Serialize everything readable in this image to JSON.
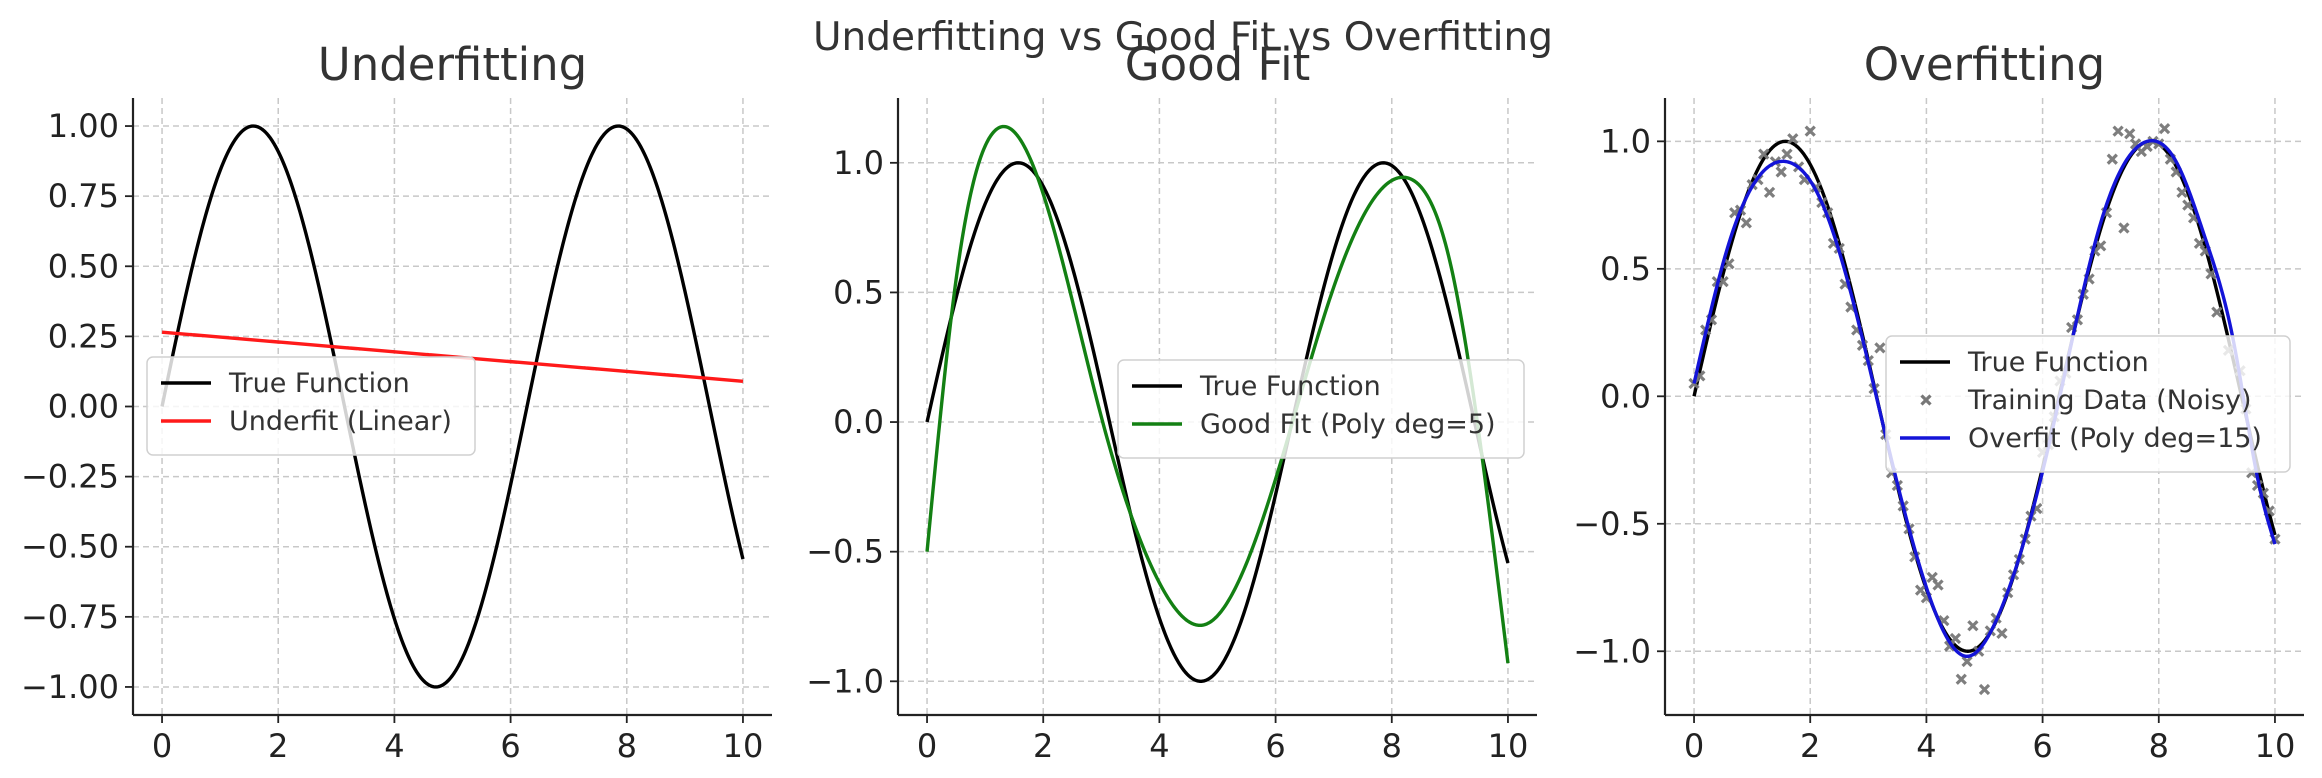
{
  "figure": {
    "suptitle": "Underfitting vs Good Fit vs Overfitting"
  },
  "colors": {
    "true": "#000000",
    "underfit": "#ff1a1a",
    "good": "#138013",
    "overfit": "#1414d8",
    "points": "#777777"
  },
  "chart_data": [
    {
      "type": "line",
      "title": "Underfitting",
      "xlabel": "",
      "ylabel": "",
      "xlim": [
        -0.5,
        10.5
      ],
      "ylim": [
        -1.1,
        1.1
      ],
      "xticks": [
        0,
        2,
        4,
        6,
        8,
        10
      ],
      "yticks": [
        1.0,
        0.75,
        0.5,
        0.25,
        0.0,
        -0.25,
        -0.5,
        -0.75,
        -1.0
      ],
      "ytick_labels": [
        "1.00",
        "0.75",
        "0.50",
        "0.25",
        "0.00",
        "−0.25",
        "−0.50",
        "−0.75",
        "−1.00"
      ],
      "grid": true,
      "legend_position": "center-left",
      "series": [
        {
          "name": "True Function",
          "color": "#000000",
          "function": "sin(x)",
          "x_range": [
            0,
            10
          ]
        },
        {
          "name": "Underfit (Linear)",
          "color": "#ff1a1a",
          "function": "linear",
          "x_range": [
            0,
            10
          ],
          "y_start": 0.265,
          "y_end": 0.09
        }
      ]
    },
    {
      "type": "line",
      "title": "Good Fit",
      "xlabel": "",
      "ylabel": "",
      "xlim": [
        -0.5,
        10.5
      ],
      "ylim": [
        -1.13,
        1.25
      ],
      "xticks": [
        0,
        2,
        4,
        6,
        8,
        10
      ],
      "yticks": [
        1.0,
        0.5,
        0.0,
        -0.5,
        -1.0
      ],
      "ytick_labels": [
        "1.0",
        "0.5",
        "0.0",
        "−0.5",
        "−1.0"
      ],
      "grid": true,
      "legend_position": "center-right",
      "series": [
        {
          "name": "True Function",
          "color": "#000000",
          "function": "sin(x)",
          "x_range": [
            0,
            10
          ]
        },
        {
          "name": "Good Fit (Poly deg=5)",
          "color": "#138013",
          "function": "polynomial",
          "x_range": [
            0,
            10
          ],
          "points": [
            [
              0,
              -0.5
            ],
            [
              0.5,
              0.55
            ],
            [
              1.2,
              1.13
            ],
            [
              2,
              0.88
            ],
            [
              3,
              0.02
            ],
            [
              4,
              -0.62
            ],
            [
              4.8,
              -0.78
            ],
            [
              6,
              -0.22
            ],
            [
              7,
              0.52
            ],
            [
              8.3,
              0.94
            ],
            [
              9,
              0.62
            ],
            [
              10,
              -0.93
            ]
          ]
        }
      ]
    },
    {
      "type": "line",
      "title": "Overfitting",
      "xlabel": "",
      "ylabel": "",
      "xlim": [
        -0.5,
        10.5
      ],
      "ylim": [
        -1.25,
        1.17
      ],
      "xticks": [
        0,
        2,
        4,
        6,
        8,
        10
      ],
      "yticks": [
        1.0,
        0.5,
        0.0,
        -0.5,
        -1.0
      ],
      "ytick_labels": [
        "1.0",
        "0.5",
        "0.0",
        "−0.5",
        "−1.0"
      ],
      "grid": true,
      "legend_position": "center-right",
      "series": [
        {
          "name": "True Function",
          "color": "#000000",
          "function": "sin(x)",
          "x_range": [
            0,
            10
          ]
        },
        {
          "name": "Training Data (Noisy)",
          "color": "#777777",
          "marker": "x",
          "points": [
            [
              0,
              0.05
            ],
            [
              0.1,
              0.08
            ],
            [
              0.2,
              0.26
            ],
            [
              0.3,
              0.3
            ],
            [
              0.4,
              0.45
            ],
            [
              0.5,
              0.45
            ],
            [
              0.6,
              0.52
            ],
            [
              0.7,
              0.72
            ],
            [
              0.8,
              0.73
            ],
            [
              0.9,
              0.68
            ],
            [
              1.0,
              0.83
            ],
            [
              1.1,
              0.85
            ],
            [
              1.2,
              0.95
            ],
            [
              1.3,
              0.8
            ],
            [
              1.4,
              0.92
            ],
            [
              1.5,
              0.88
            ],
            [
              1.6,
              0.95
            ],
            [
              1.7,
              1.01
            ],
            [
              1.8,
              0.9
            ],
            [
              1.9,
              0.85
            ],
            [
              2.0,
              1.04
            ],
            [
              2.1,
              0.82
            ],
            [
              2.2,
              0.76
            ],
            [
              2.3,
              0.72
            ],
            [
              2.4,
              0.6
            ],
            [
              2.5,
              0.58
            ],
            [
              2.6,
              0.44
            ],
            [
              2.7,
              0.35
            ],
            [
              2.8,
              0.26
            ],
            [
              2.9,
              0.2
            ],
            [
              3.0,
              0.14
            ],
            [
              3.1,
              0.03
            ],
            [
              3.2,
              0.19
            ],
            [
              3.3,
              -0.15
            ],
            [
              3.4,
              -0.3
            ],
            [
              3.5,
              -0.35
            ],
            [
              3.6,
              -0.43
            ],
            [
              3.7,
              -0.52
            ],
            [
              3.8,
              -0.63
            ],
            [
              3.9,
              -0.76
            ],
            [
              4.0,
              -0.79
            ],
            [
              4.1,
              -0.71
            ],
            [
              4.2,
              -0.74
            ],
            [
              4.3,
              -0.88
            ],
            [
              4.4,
              -0.98
            ],
            [
              4.5,
              -0.95
            ],
            [
              4.6,
              -1.11
            ],
            [
              4.7,
              -1.04
            ],
            [
              4.8,
              -0.9
            ],
            [
              4.9,
              -1.0
            ],
            [
              5.0,
              -1.15
            ],
            [
              5.1,
              -0.92
            ],
            [
              5.2,
              -0.87
            ],
            [
              5.3,
              -0.93
            ],
            [
              5.4,
              -0.77
            ],
            [
              5.5,
              -0.7
            ],
            [
              5.6,
              -0.64
            ],
            [
              5.7,
              -0.56
            ],
            [
              5.8,
              -0.47
            ],
            [
              5.9,
              -0.44
            ],
            [
              6.0,
              -0.22
            ],
            [
              6.1,
              -0.19
            ],
            [
              6.2,
              -0.08
            ],
            [
              6.3,
              0.06
            ],
            [
              6.4,
              0.09
            ],
            [
              6.5,
              0.27
            ],
            [
              6.6,
              0.3
            ],
            [
              6.7,
              0.4
            ],
            [
              6.8,
              0.46
            ],
            [
              6.9,
              0.57
            ],
            [
              7.0,
              0.59
            ],
            [
              7.1,
              0.72
            ],
            [
              7.2,
              0.93
            ],
            [
              7.3,
              1.04
            ],
            [
              7.4,
              0.66
            ],
            [
              7.5,
              1.03
            ],
            [
              7.6,
              0.99
            ],
            [
              7.7,
              0.96
            ],
            [
              7.8,
              0.98
            ],
            [
              7.9,
              1.0
            ],
            [
              8.0,
              0.99
            ],
            [
              8.1,
              1.05
            ],
            [
              8.2,
              0.93
            ],
            [
              8.3,
              0.88
            ],
            [
              8.4,
              0.8
            ],
            [
              8.5,
              0.75
            ],
            [
              8.6,
              0.7
            ],
            [
              8.7,
              0.6
            ],
            [
              8.8,
              0.57
            ],
            [
              8.9,
              0.48
            ],
            [
              9.0,
              0.33
            ],
            [
              9.2,
              0.18
            ],
            [
              9.4,
              0.1
            ],
            [
              9.5,
              -0.05
            ],
            [
              9.6,
              -0.3
            ],
            [
              9.7,
              -0.35
            ],
            [
              9.8,
              -0.38
            ],
            [
              9.9,
              -0.45
            ],
            [
              10.0,
              -0.56
            ]
          ]
        },
        {
          "name": "Overfit (Poly deg=15)",
          "color": "#1414d8",
          "function": "polynomial",
          "x_range": [
            0,
            10
          ],
          "points": [
            [
              0,
              0.05
            ],
            [
              0.6,
              0.6
            ],
            [
              1.6,
              0.92
            ],
            [
              2.2,
              0.76
            ],
            [
              3.2,
              -0.06
            ],
            [
              4.0,
              -0.75
            ],
            [
              4.7,
              -1.02
            ],
            [
              5.2,
              -0.88
            ],
            [
              6.2,
              -0.1
            ],
            [
              7.0,
              0.68
            ],
            [
              7.8,
              1.0
            ],
            [
              8.3,
              0.92
            ],
            [
              8.8,
              0.62
            ],
            [
              9.3,
              0.2
            ],
            [
              9.7,
              -0.32
            ],
            [
              10.0,
              -0.58
            ]
          ]
        }
      ]
    }
  ]
}
